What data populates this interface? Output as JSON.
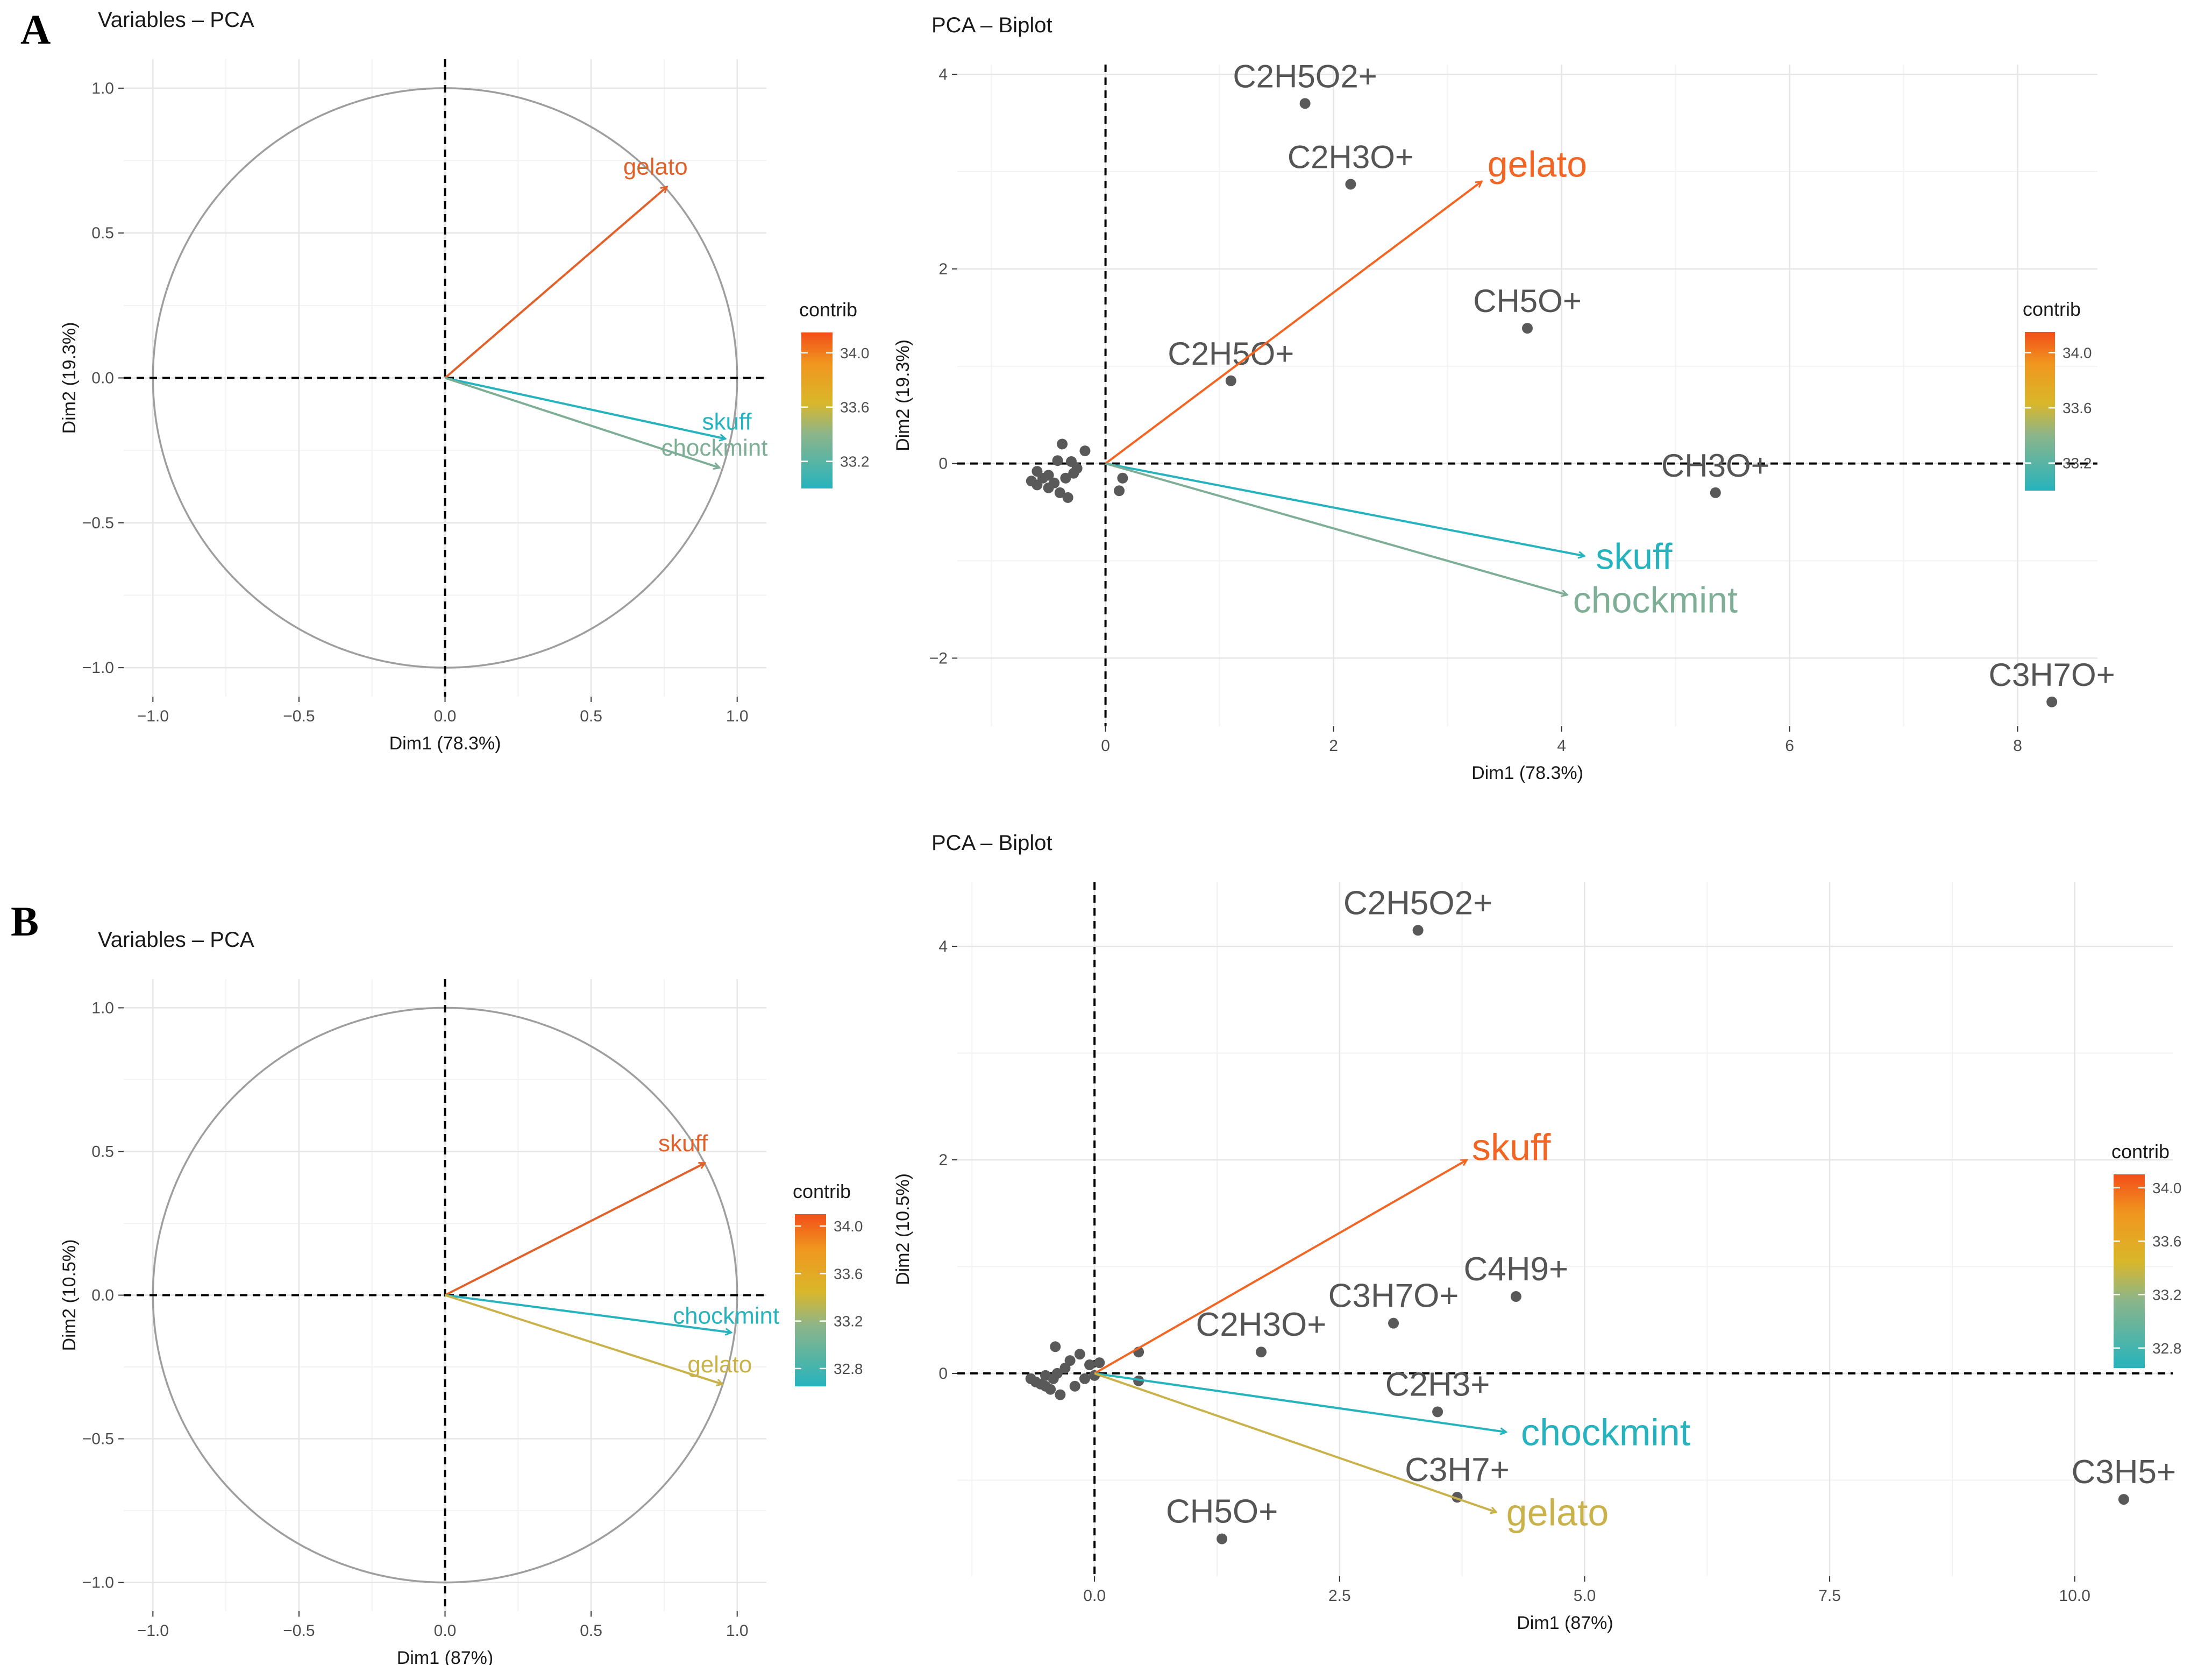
{
  "panel_letters": [
    "A",
    "B"
  ],
  "chart_data": [
    {
      "panel": "A",
      "type": "scatter",
      "subtype": "pca-variables-correlation-circle",
      "title": "Variables – PCA",
      "xlabel": "Dim1 (78.3%)",
      "ylabel": "Dim2 (19.3%)",
      "xlim": [
        -1.1,
        1.1
      ],
      "ylim": [
        -1.1,
        1.1
      ],
      "xticks": [
        -1.0,
        -0.5,
        0.0,
        0.5,
        1.0
      ],
      "xtick_labels": [
        "−1.0",
        "−0.5",
        "0.0",
        "0.5",
        "1.0"
      ],
      "yticks": [
        -1.0,
        -0.5,
        0.0,
        0.5,
        1.0
      ],
      "ytick_labels": [
        "−1.0",
        "−0.5",
        "0.0",
        "0.5",
        "1.0"
      ],
      "grid": true,
      "legend": {
        "title": "contrib",
        "ticks": [
          34.0,
          33.6,
          33.2
        ],
        "tick_labels": [
          "34.0",
          "33.6",
          "33.2"
        ],
        "range": [
          33.0,
          34.15
        ],
        "position": "right"
      },
      "vectors": [
        {
          "name": "gelato",
          "x": 0.76,
          "y": 0.66,
          "color": "#E0612A",
          "label_dx": -0.15,
          "label_dy": 0.07
        },
        {
          "name": "skuff",
          "x": 0.96,
          "y": -0.21,
          "color": "#26B3BD",
          "label_dx": -0.08,
          "label_dy": 0.06
        },
        {
          "name": "chockmint",
          "x": 0.94,
          "y": -0.31,
          "color": "#7EAF96",
          "label_dx": -0.2,
          "label_dy": 0.07
        }
      ]
    },
    {
      "panel": "A",
      "type": "scatter",
      "subtype": "pca-biplot",
      "title": "PCA – Biplot",
      "xlabel": "Dim1 (78.3%)",
      "ylabel": "Dim2 (19.3%)",
      "xlim": [
        -1.3,
        8.7
      ],
      "ylim": [
        -2.7,
        4.1
      ],
      "xticks": [
        0,
        2,
        4,
        6,
        8
      ],
      "xtick_labels": [
        "0",
        "2",
        "4",
        "6",
        "8"
      ],
      "yticks": [
        -2,
        0,
        2,
        4
      ],
      "ytick_labels": [
        "−2",
        "0",
        "2",
        "4"
      ],
      "grid": true,
      "legend": {
        "title": "contrib",
        "ticks": [
          34.0,
          33.6,
          33.2
        ],
        "tick_labels": [
          "34.0",
          "33.6",
          "33.2"
        ],
        "range": [
          33.0,
          34.15
        ],
        "position": "right"
      },
      "labeled_points": [
        {
          "label": "C2H5O2+",
          "x": 1.75,
          "y": 3.7
        },
        {
          "label": "C2H3O+",
          "x": 2.15,
          "y": 2.87
        },
        {
          "label": "CH5O+",
          "x": 3.7,
          "y": 1.39
        },
        {
          "label": "C2H5O+",
          "x": 1.1,
          "y": 0.85
        },
        {
          "label": "CH3O+",
          "x": 5.35,
          "y": -0.3
        },
        {
          "label": "C3H7O+",
          "x": 8.3,
          "y": -2.45
        }
      ],
      "cluster_points": [
        [
          -0.65,
          -0.18
        ],
        [
          -0.6,
          -0.22
        ],
        [
          -0.55,
          -0.15
        ],
        [
          -0.5,
          -0.25
        ],
        [
          -0.5,
          -0.12
        ],
        [
          -0.45,
          -0.2
        ],
        [
          -0.42,
          0.03
        ],
        [
          -0.4,
          -0.3
        ],
        [
          -0.38,
          0.2
        ],
        [
          -0.35,
          -0.15
        ],
        [
          -0.33,
          -0.35
        ],
        [
          -0.3,
          0.02
        ],
        [
          -0.28,
          -0.1
        ],
        [
          -0.25,
          -0.05
        ],
        [
          -0.18,
          0.13
        ],
        [
          0.12,
          -0.28
        ],
        [
          0.15,
          -0.15
        ],
        [
          -0.6,
          -0.08
        ]
      ],
      "vectors": [
        {
          "name": "gelato",
          "x": 3.3,
          "y": 2.9,
          "color": "#F26522",
          "label_dx": 0.05,
          "label_dy": 0.18
        },
        {
          "name": "skuff",
          "x": 4.2,
          "y": -0.95,
          "color": "#26B3BD",
          "label_dx": 0.1,
          "label_dy": 0.0
        },
        {
          "name": "chockmint",
          "x": 4.05,
          "y": -1.35,
          "color": "#7EAF96",
          "label_dx": 0.05,
          "label_dy": -0.05
        }
      ]
    },
    {
      "panel": "B",
      "type": "scatter",
      "subtype": "pca-variables-correlation-circle",
      "title": "Variables – PCA",
      "xlabel": "Dim1 (87%)",
      "ylabel": "Dim2 (10.5%)",
      "xlim": [
        -1.1,
        1.1
      ],
      "ylim": [
        -1.1,
        1.1
      ],
      "xticks": [
        -1.0,
        -0.5,
        0.0,
        0.5,
        1.0
      ],
      "xtick_labels": [
        "−1.0",
        "−0.5",
        "0.0",
        "0.5",
        "1.0"
      ],
      "yticks": [
        -1.0,
        -0.5,
        0.0,
        0.5,
        1.0
      ],
      "ytick_labels": [
        "−1.0",
        "−0.5",
        "0.0",
        "0.5",
        "1.0"
      ],
      "grid": true,
      "legend": {
        "title": "contrib",
        "ticks": [
          34.0,
          33.6,
          33.2,
          32.8
        ],
        "tick_labels": [
          "34.0",
          "33.6",
          "33.2",
          "32.8"
        ],
        "range": [
          32.65,
          34.1
        ],
        "position": "right"
      },
      "vectors": [
        {
          "name": "skuff",
          "x": 0.89,
          "y": 0.46,
          "color": "#E0612A",
          "label_dx": -0.16,
          "label_dy": 0.07
        },
        {
          "name": "chockmint",
          "x": 0.98,
          "y": -0.13,
          "color": "#26B3BD",
          "label_dx": -0.2,
          "label_dy": 0.06
        },
        {
          "name": "gelato",
          "x": 0.95,
          "y": -0.31,
          "color": "#C9B24A",
          "label_dx": -0.12,
          "label_dy": 0.07
        }
      ]
    },
    {
      "panel": "B",
      "type": "scatter",
      "subtype": "pca-biplot",
      "title": "PCA – Biplot",
      "xlabel": "Dim1 (87%)",
      "ylabel": "Dim2 (10.5%)",
      "xlim": [
        -1.4,
        11.0
      ],
      "ylim": [
        -1.9,
        4.6
      ],
      "xticks": [
        0.0,
        2.5,
        5.0,
        7.5,
        10.0
      ],
      "xtick_labels": [
        "0.0",
        "2.5",
        "5.0",
        "7.5",
        "10.0"
      ],
      "yticks": [
        0,
        2,
        4
      ],
      "ytick_labels": [
        "0",
        "2",
        "4"
      ],
      "grid": true,
      "legend": {
        "title": "contrib",
        "ticks": [
          34.0,
          33.6,
          33.2,
          32.8
        ],
        "tick_labels": [
          "34.0",
          "33.6",
          "33.2",
          "32.8"
        ],
        "range": [
          32.65,
          34.1
        ],
        "position": "right"
      },
      "labeled_points": [
        {
          "label": "C2H5O2+",
          "x": 3.3,
          "y": 4.15
        },
        {
          "label": "C4H9+",
          "x": 4.3,
          "y": 0.72
        },
        {
          "label": "C3H7O+",
          "x": 3.05,
          "y": 0.47
        },
        {
          "label": "C2H3O+",
          "x": 1.7,
          "y": 0.2
        },
        {
          "label": "C2H3+",
          "x": 3.5,
          "y": -0.36
        },
        {
          "label": "C3H7+",
          "x": 3.7,
          "y": -1.16
        },
        {
          "label": "CH5O+",
          "x": 1.3,
          "y": -1.55
        },
        {
          "label": "C3H5+",
          "x": 10.5,
          "y": -1.18
        }
      ],
      "cluster_points": [
        [
          -0.65,
          -0.05
        ],
        [
          -0.6,
          -0.08
        ],
        [
          -0.55,
          -0.1
        ],
        [
          -0.5,
          -0.02
        ],
        [
          -0.5,
          -0.12
        ],
        [
          -0.45,
          -0.15
        ],
        [
          -0.42,
          -0.05
        ],
        [
          -0.4,
          0.25
        ],
        [
          -0.35,
          -0.2
        ],
        [
          -0.3,
          0.05
        ],
        [
          -0.25,
          0.12
        ],
        [
          -0.2,
          -0.12
        ],
        [
          -0.15,
          0.18
        ],
        [
          -0.1,
          -0.05
        ],
        [
          -0.05,
          0.08
        ],
        [
          0.05,
          0.1
        ],
        [
          0.45,
          0.2
        ],
        [
          0.45,
          -0.07
        ],
        [
          -0.38,
          0.0
        ],
        [
          0.0,
          -0.02
        ]
      ],
      "vectors": [
        {
          "name": "skuff",
          "x": 3.8,
          "y": 2.0,
          "color": "#F26522",
          "label_dx": 0.05,
          "label_dy": 0.12
        },
        {
          "name": "chockmint",
          "x": 4.2,
          "y": -0.55,
          "color": "#26B3BD",
          "label_dx": 0.15,
          "label_dy": 0.0
        },
        {
          "name": "gelato",
          "x": 4.1,
          "y": -1.3,
          "color": "#C9B24A",
          "label_dx": 0.1,
          "label_dy": 0.0
        }
      ]
    }
  ]
}
